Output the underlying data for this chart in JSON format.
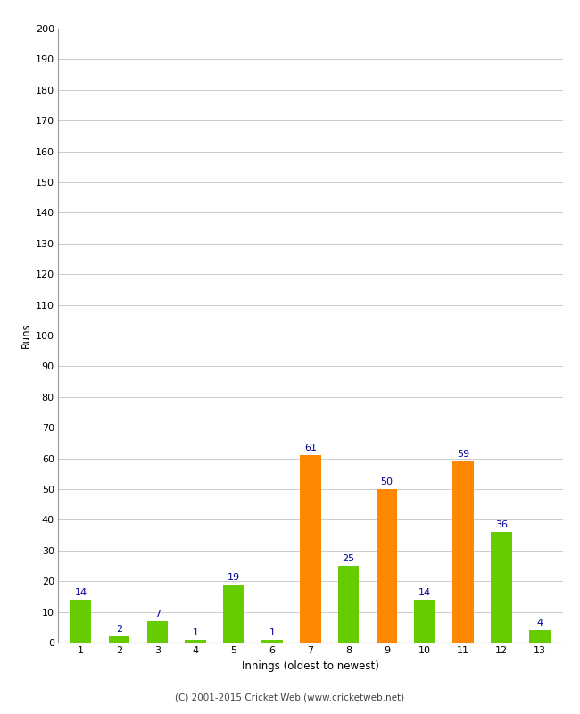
{
  "xlabel": "Innings (oldest to newest)",
  "ylabel": "Runs",
  "categories": [
    1,
    2,
    3,
    4,
    5,
    6,
    7,
    8,
    9,
    10,
    11,
    12,
    13
  ],
  "values": [
    14,
    2,
    7,
    1,
    19,
    1,
    61,
    25,
    50,
    14,
    59,
    36,
    4
  ],
  "colors": [
    "#66cc00",
    "#66cc00",
    "#66cc00",
    "#66cc00",
    "#66cc00",
    "#66cc00",
    "#ff8800",
    "#66cc00",
    "#ff8800",
    "#66cc00",
    "#ff8800",
    "#66cc00",
    "#66cc00"
  ],
  "ylim": [
    0,
    200
  ],
  "yticks": [
    0,
    10,
    20,
    30,
    40,
    50,
    60,
    70,
    80,
    90,
    100,
    110,
    120,
    130,
    140,
    150,
    160,
    170,
    180,
    190,
    200
  ],
  "label_color": "#000099",
  "background_color": "#ffffff",
  "footer": "(C) 2001-2015 Cricket Web (www.cricketweb.net)",
  "grid_color": "#cccccc",
  "bar_width": 0.55,
  "figsize": [
    6.5,
    8.0
  ],
  "dpi": 100
}
